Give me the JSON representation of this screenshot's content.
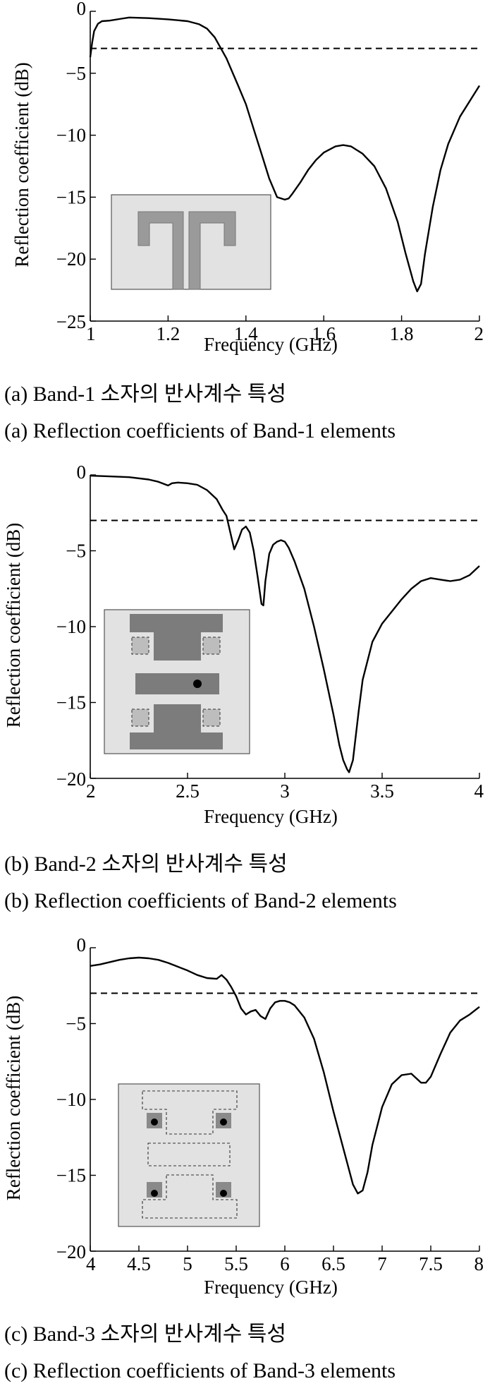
{
  "chart_data": [
    {
      "type": "line",
      "xlabel": "Frequency (GHz)",
      "ylabel": "Reflection coefficient (dB)",
      "xlim": [
        1,
        2
      ],
      "ylim": [
        -25,
        0
      ],
      "xticks": [
        1,
        1.2,
        1.4,
        1.6,
        1.8,
        2
      ],
      "xtick_labels": [
        "1",
        "1.2",
        "1.4",
        "1.6",
        "1.8",
        "2"
      ],
      "yticks": [
        0,
        -5,
        -10,
        -15,
        -20,
        -25
      ],
      "ytick_labels": [
        "0",
        "−5",
        "−10",
        "−15",
        "−20",
        "−25"
      ],
      "reference_line": -3,
      "series": [
        {
          "x": [
            1.0,
            1.005,
            1.01,
            1.02,
            1.03,
            1.05,
            1.08,
            1.1,
            1.15,
            1.2,
            1.25,
            1.28,
            1.3,
            1.32,
            1.35,
            1.38,
            1.4,
            1.42,
            1.44,
            1.46,
            1.48,
            1.5,
            1.51,
            1.52,
            1.54,
            1.56,
            1.58,
            1.6,
            1.63,
            1.65,
            1.67,
            1.7,
            1.73,
            1.76,
            1.79,
            1.81,
            1.83,
            1.84,
            1.85,
            1.86,
            1.88,
            1.9,
            1.92,
            1.95,
            1.98,
            2.0
          ],
          "y": [
            -3.7,
            -2.5,
            -1.6,
            -1.0,
            -0.8,
            -0.75,
            -0.6,
            -0.5,
            -0.55,
            -0.65,
            -0.8,
            -1.05,
            -1.4,
            -2.1,
            -3.8,
            -6.0,
            -7.5,
            -9.5,
            -11.5,
            -13.5,
            -15.0,
            -15.2,
            -15.1,
            -14.7,
            -13.8,
            -12.8,
            -12.0,
            -11.4,
            -10.9,
            -10.8,
            -10.9,
            -11.5,
            -12.5,
            -14.3,
            -17.0,
            -19.5,
            -21.8,
            -22.6,
            -22.0,
            -19.6,
            -15.8,
            -12.8,
            -10.7,
            -8.5,
            -7.0,
            -6.0
          ]
        }
      ]
    },
    {
      "type": "line",
      "xlabel": "Frequency (GHz)",
      "ylabel": "Reflection coefficient (dB)",
      "xlim": [
        2,
        4
      ],
      "ylim": [
        -20,
        0
      ],
      "xticks": [
        2,
        2.5,
        3,
        3.5,
        4
      ],
      "xtick_labels": [
        "2",
        "2.5",
        "3",
        "3.5",
        "4"
      ],
      "yticks": [
        0,
        -5,
        -10,
        -15,
        -20
      ],
      "ytick_labels": [
        "0",
        "−5",
        "−10",
        "−15",
        "−20"
      ],
      "reference_line": -3,
      "series": [
        {
          "x": [
            2.0,
            2.1,
            2.2,
            2.3,
            2.35,
            2.4,
            2.42,
            2.45,
            2.5,
            2.55,
            2.6,
            2.65,
            2.68,
            2.7,
            2.72,
            2.74,
            2.76,
            2.78,
            2.8,
            2.82,
            2.84,
            2.86,
            2.88,
            2.89,
            2.9,
            2.92,
            2.94,
            2.96,
            2.98,
            3.0,
            3.02,
            3.05,
            3.1,
            3.15,
            3.2,
            3.25,
            3.28,
            3.3,
            3.32,
            3.33,
            3.35,
            3.38,
            3.4,
            3.45,
            3.5,
            3.55,
            3.6,
            3.65,
            3.7,
            3.75,
            3.8,
            3.85,
            3.9,
            3.95,
            4.0
          ],
          "y": [
            -0.05,
            -0.1,
            -0.15,
            -0.3,
            -0.45,
            -0.7,
            -0.55,
            -0.5,
            -0.55,
            -0.65,
            -1.0,
            -1.6,
            -2.3,
            -2.7,
            -3.8,
            -4.9,
            -4.3,
            -3.6,
            -3.4,
            -3.8,
            -5.0,
            -6.7,
            -8.5,
            -8.6,
            -7.0,
            -5.2,
            -4.6,
            -4.4,
            -4.3,
            -4.4,
            -4.8,
            -5.7,
            -7.5,
            -10.0,
            -12.8,
            -15.8,
            -17.8,
            -18.8,
            -19.4,
            -19.6,
            -18.8,
            -15.5,
            -13.5,
            -11.0,
            -9.8,
            -9.0,
            -8.2,
            -7.5,
            -7.0,
            -6.8,
            -6.9,
            -7.0,
            -6.9,
            -6.6,
            -6.0
          ]
        }
      ]
    },
    {
      "type": "line",
      "xlabel": "Frequency (GHz)",
      "ylabel": "Reflection coefficient (dB)",
      "xlim": [
        4,
        8
      ],
      "ylim": [
        -20,
        0
      ],
      "xticks": [
        4,
        4.5,
        5,
        5.5,
        6,
        6.5,
        7,
        7.5,
        8
      ],
      "xtick_labels": [
        "4",
        "4.5",
        "5",
        "5.5",
        "6",
        "6.5",
        "7",
        "7.5",
        "8"
      ],
      "yticks": [
        0,
        -5,
        -10,
        -15,
        -20
      ],
      "ytick_labels": [
        "0",
        "−5",
        "−10",
        "−15",
        "−20"
      ],
      "reference_line": -3,
      "series": [
        {
          "x": [
            4.0,
            4.1,
            4.2,
            4.3,
            4.4,
            4.5,
            4.6,
            4.7,
            4.8,
            4.9,
            5.0,
            5.1,
            5.2,
            5.3,
            5.35,
            5.4,
            5.45,
            5.5,
            5.55,
            5.6,
            5.65,
            5.7,
            5.75,
            5.8,
            5.85,
            5.9,
            5.95,
            6.0,
            6.05,
            6.1,
            6.2,
            6.3,
            6.4,
            6.5,
            6.6,
            6.7,
            6.75,
            6.8,
            6.85,
            6.9,
            7.0,
            7.1,
            7.2,
            7.3,
            7.35,
            7.4,
            7.45,
            7.5,
            7.6,
            7.7,
            7.8,
            7.9,
            8.0
          ],
          "y": [
            -1.2,
            -1.1,
            -0.95,
            -0.8,
            -0.7,
            -0.65,
            -0.7,
            -0.8,
            -1.0,
            -1.25,
            -1.5,
            -1.8,
            -2.0,
            -2.05,
            -1.8,
            -2.1,
            -2.6,
            -3.2,
            -4.0,
            -4.4,
            -4.2,
            -4.1,
            -4.5,
            -4.7,
            -4.0,
            -3.6,
            -3.5,
            -3.5,
            -3.6,
            -3.8,
            -4.6,
            -6.0,
            -8.2,
            -10.8,
            -13.2,
            -15.6,
            -16.2,
            -16.0,
            -14.8,
            -13.0,
            -10.5,
            -9.0,
            -8.4,
            -8.3,
            -8.6,
            -8.9,
            -8.9,
            -8.5,
            -7.0,
            -5.6,
            -4.8,
            -4.4,
            -3.9
          ]
        }
      ]
    }
  ],
  "captions": {
    "a_kr": "(a) Band-1 소자의 반사계수 특성",
    "a_en": "(a) Reflection coefficients of Band-1 elements",
    "b_kr": "(b) Band-2 소자의 반사계수 특성",
    "b_en": "(b) Reflection coefficients of Band-2 elements",
    "c_kr": "(c) Band-3 소자의 반사계수 특성",
    "c_en": "(c) Reflection coefficients of Band-3 elements"
  },
  "colors": {
    "curve": "#000000",
    "inset_background": "#e2e2e2",
    "inset_element": "#9a9a9a",
    "inset_element_dark": "#7c7c7c"
  }
}
